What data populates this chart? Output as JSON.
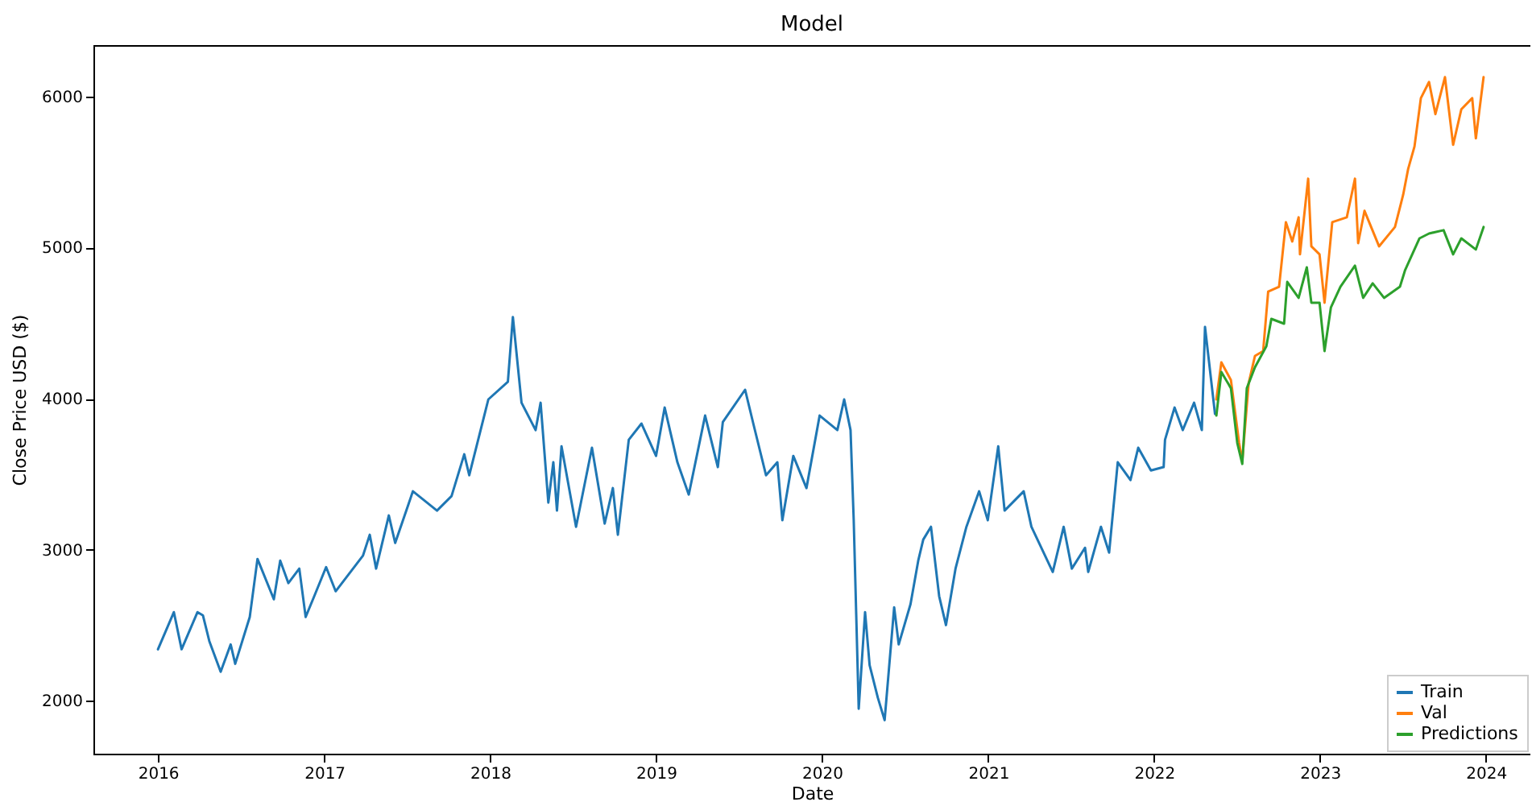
{
  "chart_data": {
    "type": "line",
    "title": "Model",
    "xlabel": "Date",
    "ylabel": "Close Price USD ($)",
    "xlim": [
      "2015-08-12",
      "2024-04-08"
    ],
    "ylim": [
      1650,
      6340
    ],
    "xticks": [
      {
        "value": "2016",
        "label": "2016"
      },
      {
        "value": "2017",
        "label": "2017"
      },
      {
        "value": "2018",
        "label": "2018"
      },
      {
        "value": "2019",
        "label": "2019"
      },
      {
        "value": "2020",
        "label": "2020"
      },
      {
        "value": "2021",
        "label": "2021"
      },
      {
        "value": "2022",
        "label": "2022"
      },
      {
        "value": "2023",
        "label": "2023"
      },
      {
        "value": "2024",
        "label": "2024"
      }
    ],
    "yticks": [
      2000,
      3000,
      4000,
      5000,
      6000
    ],
    "grid": false,
    "legend": "bottom right",
    "line_style": "solid",
    "marker": "none",
    "series": [
      {
        "name": "Train",
        "color": "#1f77b4",
        "x": [
          "2016-01-01",
          "2016-02-05",
          "2016-02-22",
          "2016-03-28",
          "2016-04-09",
          "2016-04-23",
          "2016-05-18",
          "2016-06-09",
          "2016-06-19",
          "2016-07-21",
          "2016-08-07",
          "2016-09-12",
          "2016-09-26",
          "2016-10-14",
          "2016-11-07",
          "2016-11-21",
          "2016-12-10",
          "2017-01-05",
          "2017-01-26",
          "2017-03-27",
          "2017-04-11",
          "2017-04-25",
          "2017-05-23",
          "2017-06-06",
          "2017-07-15",
          "2017-09-06",
          "2017-10-08",
          "2017-11-05",
          "2017-11-16",
          "2017-12-28",
          "2018-02-09",
          "2018-02-20",
          "2018-03-11",
          "2018-04-11",
          "2018-04-22",
          "2018-05-09",
          "2018-05-20",
          "2018-05-28",
          "2018-06-07",
          "2018-07-09",
          "2018-08-13",
          "2018-09-10",
          "2018-09-28",
          "2018-10-09",
          "2018-11-02",
          "2018-11-30",
          "2019-01-01",
          "2019-01-20",
          "2019-02-17",
          "2019-03-14",
          "2019-04-19",
          "2019-05-17",
          "2019-05-28",
          "2019-07-16",
          "2019-08-03",
          "2019-08-31",
          "2019-09-25",
          "2019-10-06",
          "2019-10-30",
          "2019-11-28",
          "2019-12-27",
          "2020-02-04",
          "2020-02-19",
          "2020-03-04",
          "2020-03-11",
          "2020-03-22",
          "2020-04-05",
          "2020-04-15",
          "2020-05-03",
          "2020-05-18",
          "2020-06-08",
          "2020-06-18",
          "2020-07-14",
          "2020-07-31",
          "2020-08-11",
          "2020-08-28",
          "2020-09-15",
          "2020-09-30",
          "2020-10-21",
          "2020-11-14",
          "2020-12-12",
          "2020-12-31",
          "2021-01-23",
          "2021-02-06",
          "2021-03-20",
          "2021-04-06",
          "2021-05-23",
          "2021-06-16",
          "2021-07-04",
          "2021-08-02",
          "2021-08-09",
          "2021-09-06",
          "2021-09-24",
          "2021-10-13",
          "2021-11-10",
          "2021-11-27",
          "2021-12-25",
          "2022-01-22",
          "2022-01-25",
          "2022-02-15",
          "2022-03-05",
          "2022-03-30",
          "2022-04-16",
          "2022-04-23",
          "2022-05-15"
        ],
        "values": [
          2341,
          2587,
          2341,
          2587,
          2565,
          2395,
          2192,
          2373,
          2245,
          2555,
          2939,
          2672,
          2928,
          2779,
          2875,
          2555,
          2693,
          2885,
          2725,
          2960,
          3099,
          2875,
          3227,
          3045,
          3387,
          3259,
          3355,
          3632,
          3493,
          3995,
          4112,
          4540,
          3973,
          3792,
          3973,
          3312,
          3579,
          3259,
          3685,
          3152,
          3675,
          3173,
          3408,
          3099,
          3728,
          3835,
          3621,
          3941,
          3579,
          3365,
          3888,
          3547,
          3845,
          4059,
          3835,
          3493,
          3579,
          3195,
          3621,
          3408,
          3888,
          3792,
          3995,
          3792,
          3195,
          1947,
          2587,
          2235,
          2021,
          1872,
          2619,
          2373,
          2640,
          2928,
          3067,
          3152,
          2693,
          2501,
          2875,
          3152,
          3387,
          3195,
          3685,
          3259,
          3387,
          3152,
          2853,
          3152,
          2875,
          3013,
          2853,
          3152,
          2981,
          3579,
          3461,
          3675,
          3525,
          3547,
          3728,
          3941,
          3792,
          3973,
          3792,
          4475,
          3899
        ]
      },
      {
        "name": "Val",
        "color": "#ff7f0e",
        "x": [
          "2022-05-18",
          "2022-05-29",
          "2022-06-19",
          "2022-07-07",
          "2022-07-14",
          "2022-07-28",
          "2022-08-11",
          "2022-08-29",
          "2022-09-09",
          "2022-10-03",
          "2022-10-18",
          "2022-11-01",
          "2022-11-15",
          "2022-11-18",
          "2022-12-06",
          "2022-12-13",
          "2022-12-31",
          "2023-01-11",
          "2023-01-28",
          "2023-03-01",
          "2023-03-19",
          "2023-03-26",
          "2023-04-09",
          "2023-05-11",
          "2023-06-15",
          "2023-07-03",
          "2023-07-14",
          "2023-07-28",
          "2023-08-11",
          "2023-08-29",
          "2023-09-12",
          "2023-10-03",
          "2023-10-21",
          "2023-11-08",
          "2023-12-02",
          "2023-12-10",
          "2023-12-27"
        ],
        "values": [
          3995,
          4240,
          4123,
          3707,
          3589,
          4101,
          4283,
          4315,
          4709,
          4741,
          5168,
          5040,
          5200,
          4955,
          5456,
          5008,
          4955,
          4635,
          5168,
          5200,
          5456,
          5029,
          5243,
          5008,
          5136,
          5349,
          5520,
          5669,
          5989,
          6096,
          5883,
          6128,
          5680,
          5915,
          5989,
          5723,
          6128
        ]
      },
      {
        "name": "Predictions",
        "color": "#2ca02c",
        "x": [
          "2022-05-18",
          "2022-05-29",
          "2022-06-19",
          "2022-07-03",
          "2022-07-14",
          "2022-07-24",
          "2022-08-11",
          "2022-09-05",
          "2022-09-16",
          "2022-10-14",
          "2022-10-21",
          "2022-11-15",
          "2022-12-03",
          "2022-12-13",
          "2022-12-31",
          "2023-01-11",
          "2023-01-25",
          "2023-02-15",
          "2023-03-19",
          "2023-04-06",
          "2023-04-27",
          "2023-05-22",
          "2023-06-26",
          "2023-07-07",
          "2023-08-08",
          "2023-08-29",
          "2023-09-30",
          "2023-10-21",
          "2023-11-08",
          "2023-12-10",
          "2023-12-27"
        ],
        "values": [
          3888,
          4176,
          4069,
          3707,
          3568,
          4069,
          4208,
          4347,
          4528,
          4496,
          4773,
          4667,
          4869,
          4635,
          4635,
          4315,
          4603,
          4741,
          4880,
          4667,
          4763,
          4667,
          4741,
          4848,
          5061,
          5093,
          5115,
          4955,
          5061,
          4987,
          5136
        ]
      }
    ]
  }
}
